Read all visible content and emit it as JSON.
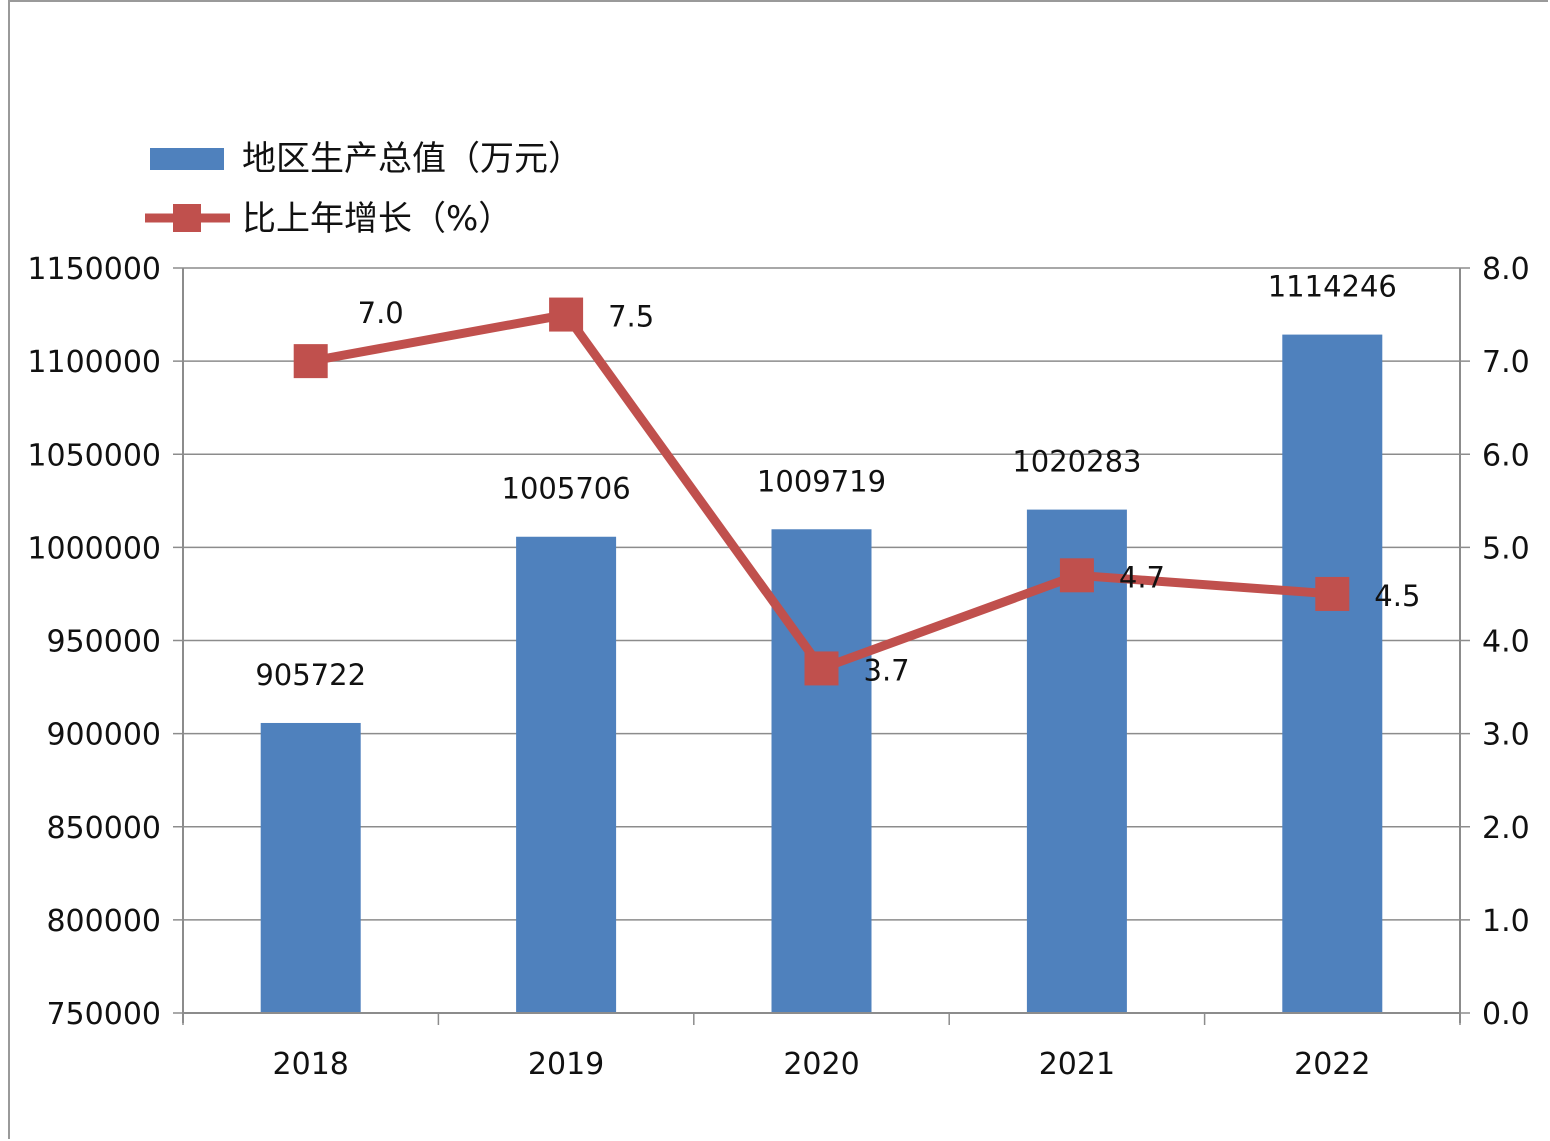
{
  "chart_data": {
    "type": "bar",
    "categories": [
      "2018",
      "2019",
      "2020",
      "2021",
      "2022"
    ],
    "series": [
      {
        "name": "地区生产总值（万元）",
        "type": "bar",
        "axis": "left",
        "color": "#4f81bd",
        "values": [
          905722,
          1005706,
          1009719,
          1020283,
          1114246
        ],
        "labels": [
          "905722",
          "1005706",
          "1009719",
          "1020283",
          "1114246"
        ]
      },
      {
        "name": "比上年增长（%）",
        "type": "line",
        "axis": "right",
        "color": "#c0504d",
        "values": [
          7.0,
          7.5,
          3.7,
          4.7,
          4.5
        ],
        "labels": [
          "7.0",
          "7.5",
          "3.7",
          "4.7",
          "4.5"
        ]
      }
    ],
    "y_left": {
      "min": 750000,
      "max": 1150000,
      "step": 50000,
      "ticks": [
        "750000",
        "800000",
        "850000",
        "900000",
        "950000",
        "1000000",
        "1050000",
        "1100000",
        "1150000"
      ]
    },
    "y_right": {
      "min": 0,
      "max": 8,
      "step": 1,
      "ticks": [
        "0.0",
        "1.0",
        "2.0",
        "3.0",
        "4.0",
        "5.0",
        "6.0",
        "7.0",
        "8.0"
      ]
    },
    "grid": true,
    "legend": "top-left",
    "title": "",
    "xlabel": "",
    "ylabel": ""
  }
}
